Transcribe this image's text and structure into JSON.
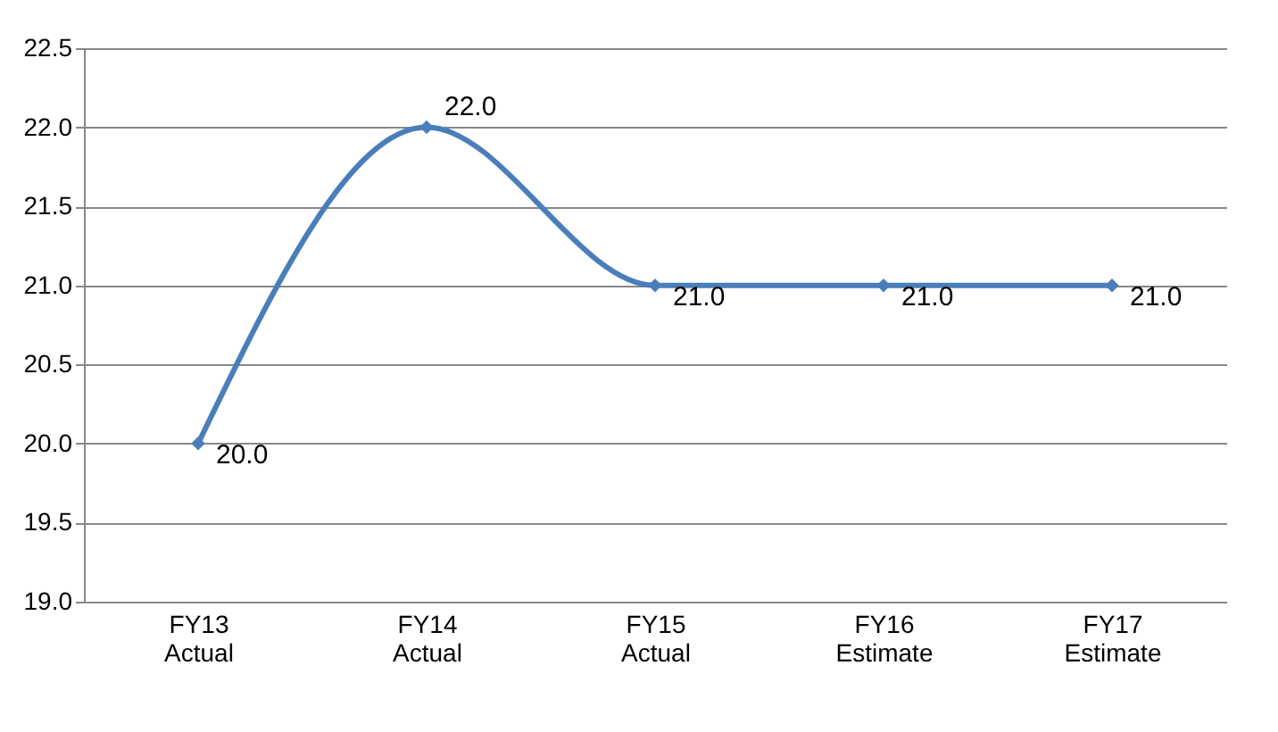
{
  "chart_data": {
    "type": "line",
    "categories": [
      "FY13 Actual",
      "FY14 Actual",
      "FY15 Actual",
      "FY16 Estimate",
      "FY17 Estimate"
    ],
    "series": [
      {
        "color": "#4a7ebb",
        "values": [
          20,
          22,
          21,
          21,
          21
        ],
        "value_labels": [
          "20.0",
          "22.0",
          "21.0",
          "21.0",
          "21.0"
        ]
      }
    ],
    "ylim": [
      19,
      22.5
    ],
    "yticks": [
      {
        "value": 19,
        "label": "19.0"
      },
      {
        "value": 19.5,
        "label": "19.5"
      },
      {
        "value": 20,
        "label": "20.0"
      },
      {
        "value": 20.5,
        "label": "20.5"
      },
      {
        "value": 21,
        "label": "21.0"
      },
      {
        "value": 21.5,
        "label": "21.5"
      },
      {
        "value": 22,
        "label": "22.0"
      },
      {
        "value": 22.5,
        "label": "22.5"
      }
    ],
    "grid": "y",
    "marker": "diamond",
    "line_style": "solid"
  }
}
